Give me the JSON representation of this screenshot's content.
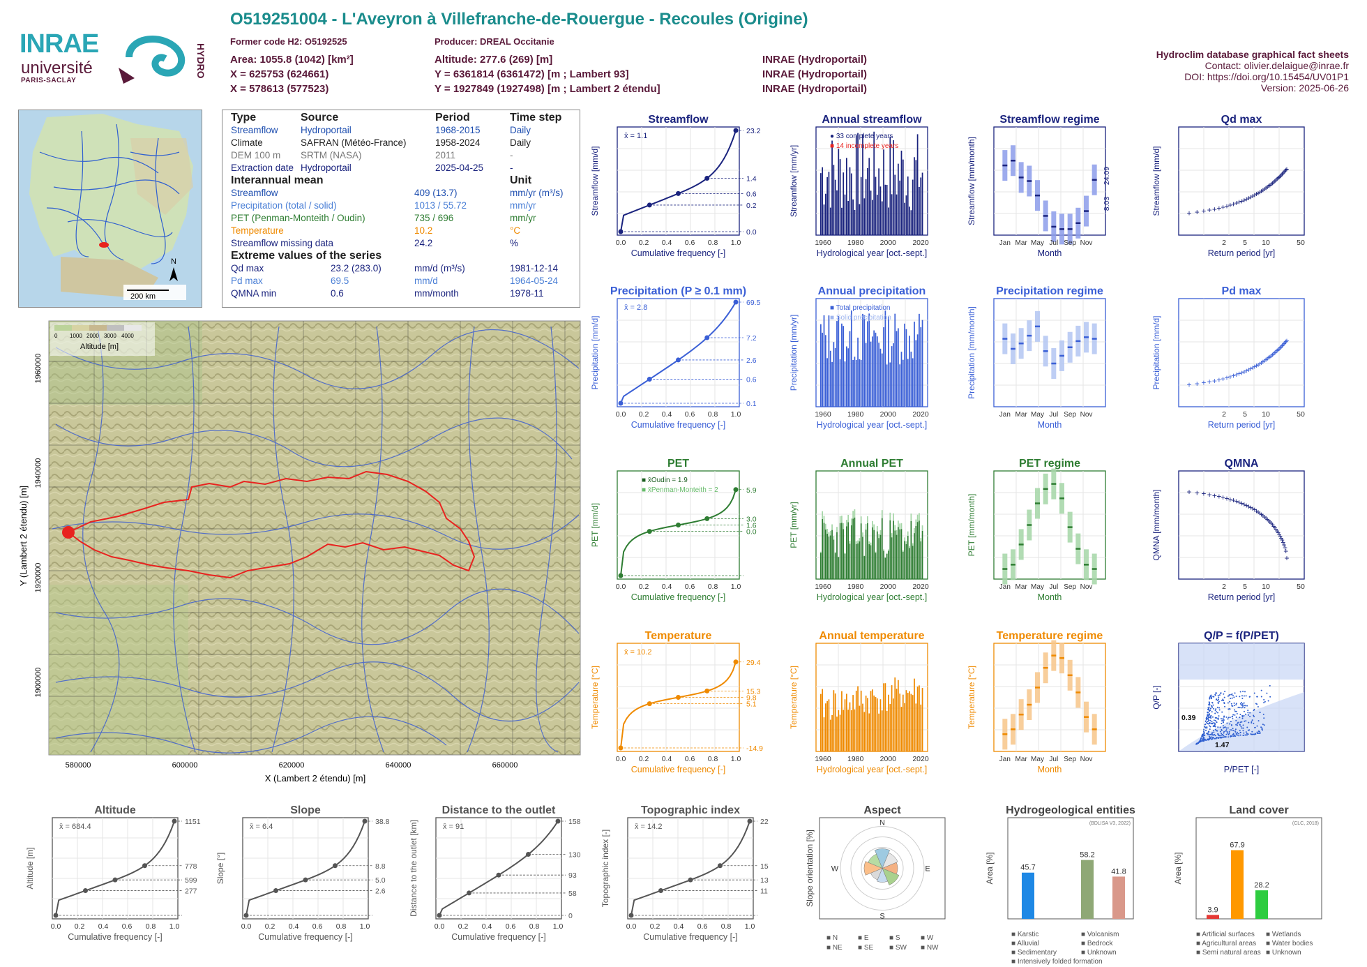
{
  "header": {
    "title": "O519251004 - L'Aveyron à Villefranche-de-Rouergue - Recoules (Origine)",
    "former_code": "Former code H2: O5192525",
    "producer": "Producer: DREAL Occitanie",
    "area": "Area: 1055.8 (1042) [km²]",
    "altitude": "Altitude: 277.6 (269) [m]",
    "x_lambert93": "X = 625753 (624661)",
    "y_lambert93": "Y = 6361814 (6361472) [m ; Lambert 93]",
    "x_lambert2": "X = 578613 (577523)",
    "y_lambert2": "Y = 1927849 (1927498) [m ; Lambert 2 étendu]",
    "src1": "INRAE (Hydroportail)",
    "src2": "INRAE (Hydroportail)",
    "src3": "INRAE (Hydroportail)"
  },
  "right_info": {
    "title": "Hydroclim database graphical fact sheets",
    "contact": "Contact: olivier.delaigue@inrae.fr",
    "doi": "DOI: https://doi.org/10.15454/UV01P1",
    "version": "Version: 2025-06-26"
  },
  "logos": {
    "inrae": "INRAE",
    "univ": "université",
    "paris": "PARIS-SACLAY",
    "hydro": "HYDRO"
  },
  "table": {
    "h_type": "Type",
    "h_source": "Source",
    "h_period": "Period",
    "h_step": "Time step",
    "rows": [
      {
        "type": "Streamflow",
        "source": "Hydroportail",
        "period": "1968-2015",
        "step": "Daily"
      },
      {
        "type": "Climate",
        "source": "SAFRAN (Météo-France)",
        "period": "1958-2024",
        "step": "Daily"
      },
      {
        "type": "DEM 100 m",
        "source": "SRTM (NASA)",
        "period": "2011",
        "step": "-"
      },
      {
        "type": "Extraction date",
        "source": "Hydroportail",
        "period": "2025-04-25",
        "step": "-"
      }
    ],
    "interannual": "Interannual mean",
    "unit": "Unit",
    "means": [
      {
        "name": "Streamflow",
        "value": "409 (13.7)",
        "unit": "mm/yr (m³/s)"
      },
      {
        "name": "Precipitation (total / solid)",
        "value": "1013 / 55.72",
        "unit": "mm/yr"
      },
      {
        "name": "PET (Penman-Monteith / Oudin)",
        "value": "735 / 696",
        "unit": "mm/yr"
      },
      {
        "name": "Temperature",
        "value": "10.2",
        "unit": "°C"
      },
      {
        "name": "Streamflow missing data",
        "value": "24.2",
        "unit": "%"
      }
    ],
    "extreme": "Extreme values of the series",
    "extremes": [
      {
        "name": "Qd max",
        "value": "23.2 (283.0)",
        "unit": "mm/d (m³/s)",
        "date": "1981-12-14"
      },
      {
        "name": "Pd max",
        "value": "69.5",
        "unit": "mm/d",
        "date": "1964-05-24"
      },
      {
        "name": "QMNA min",
        "value": "0.6",
        "unit": "mm/month",
        "date": "1978-11"
      }
    ]
  },
  "map": {
    "legend_ticks": [
      "0",
      "1000",
      "2000",
      "3000",
      "4000"
    ],
    "legend_label": "Altitude [m]",
    "x_ticks": [
      "580000",
      "600000",
      "620000",
      "640000",
      "660000"
    ],
    "y_ticks": [
      "1960000",
      "1940000",
      "1920000",
      "1900000"
    ],
    "xlabel": "X (Lambert 2 étendu) [m]",
    "ylabel": "Y (Lambert 2 étendu) [m]",
    "scale": "200 km",
    "north": "N"
  },
  "colors": {
    "flow": "#1a237e",
    "precip": "#3a5fd6",
    "pet": "#2e7d32",
    "temp": "#ef8a00",
    "basin": "#e8231f"
  },
  "chart_data": [
    {
      "id": "streamflow",
      "type": "line",
      "title": "Streamflow",
      "xlabel": "Cumulative frequency [-]",
      "ylabel": "Streamflow [mm/d]",
      "mean_label": "x̄ = 1.1",
      "right_ticks": [
        "23.2",
        "1.4",
        "0.6",
        "0.2",
        "0.0"
      ]
    },
    {
      "id": "annual_streamflow",
      "type": "bar",
      "title": "Annual streamflow",
      "xlabel": "Hydrological year [oct.-sept.]",
      "ylabel": "Streamflow [mm/yr]",
      "legend": [
        "33 complete years",
        "14 incomplete years"
      ]
    },
    {
      "id": "streamflow_regime",
      "type": "bar",
      "title": "Streamflow regime",
      "xlabel": "Month",
      "ylabel": "Streamflow [mm/month]",
      "right_ticks": [
        "24.09",
        "8.03"
      ],
      "categories": [
        "Jan",
        "Feb",
        "Mar",
        "Apr",
        "May",
        "Jun",
        "Jul",
        "Aug",
        "Sep",
        "Oct",
        "Nov",
        "Dec"
      ],
      "median": [
        58,
        62,
        48,
        45,
        33,
        16,
        7,
        5,
        5,
        10,
        20,
        46
      ]
    },
    {
      "id": "qd_max",
      "type": "scatter",
      "title": "Qd max",
      "xlabel": "Return period [yr]",
      "ylabel": "Streamflow [mm/d]"
    },
    {
      "id": "precipitation",
      "type": "line",
      "title": "Precipitation (P ≥ 0.1 mm)",
      "xlabel": "Cumulative frequency [-]",
      "ylabel": "Precipitation [mm/d]",
      "mean_label": "x̄ = 2.8",
      "right_ticks": [
        "69.5",
        "7.2",
        "2.6",
        "0.6",
        "0.1"
      ]
    },
    {
      "id": "annual_precipitation",
      "type": "bar",
      "title": "Annual precipitation",
      "xlabel": "Hydrological year [oct.-sept.]",
      "ylabel": "Precipitation [mm/yr]",
      "legend": [
        "Total precipitation",
        "Solid precipitation"
      ]
    },
    {
      "id": "precip_regime",
      "type": "bar",
      "title": "Precipitation regime",
      "xlabel": "Month",
      "ylabel": "Precipitation [mm/month]",
      "median": [
        88,
        75,
        82,
        92,
        104,
        72,
        56,
        66,
        77,
        85,
        90,
        88
      ]
    },
    {
      "id": "pd_max",
      "type": "scatter",
      "title": "Pd max",
      "xlabel": "Return period [yr]",
      "ylabel": "Precipitation [mm/d]"
    },
    {
      "id": "pet",
      "type": "line",
      "title": "PET",
      "xlabel": "Cumulative frequency [-]",
      "ylabel": "PET [mm/d]",
      "legend": [
        "x̄Oudin = 1.9",
        "x̄Penman-Monteith = 2"
      ],
      "right_ticks": [
        "5.9",
        "3.0",
        "1.6",
        "0.0"
      ]
    },
    {
      "id": "annual_pet",
      "type": "bar",
      "title": "Annual PET",
      "xlabel": "Hydrological year [oct.-sept.]",
      "ylabel": "PET [mm/yr]"
    },
    {
      "id": "pet_regime",
      "type": "bar",
      "title": "PET regime",
      "xlabel": "Month",
      "ylabel": "PET [mm/month]",
      "median": [
        14,
        20,
        48,
        75,
        105,
        125,
        132,
        112,
        72,
        42,
        20,
        14
      ]
    },
    {
      "id": "qmna",
      "type": "scatter",
      "title": "QMNA",
      "xlabel": "Return period [yr]",
      "ylabel": "QMNA [mm/month]"
    },
    {
      "id": "temperature",
      "type": "line",
      "title": "Temperature",
      "xlabel": "Cumulative frequency [-]",
      "ylabel": "Temperature [°C]",
      "mean_label": "x̄ = 10.2",
      "right_ticks": [
        "29.4",
        "15.3",
        "9.8",
        "5.1",
        "-14.9"
      ]
    },
    {
      "id": "annual_temperature",
      "type": "bar",
      "title": "Annual temperature",
      "xlabel": "Hydrological year [oct.-sept.]",
      "ylabel": "Temperature [°C]"
    },
    {
      "id": "temp_regime",
      "type": "bar",
      "title": "Temperature regime",
      "xlabel": "Month",
      "ylabel": "Temperature [°C]",
      "median": [
        3.5,
        4.5,
        7.5,
        9.5,
        13,
        17,
        19.5,
        19,
        15.5,
        12,
        7,
        4.5
      ]
    },
    {
      "id": "qp_ppet",
      "type": "scatter",
      "title": "Q/P = f(P/PET)",
      "xlabel": "P/PET [-]",
      "ylabel": "Q/P [-]",
      "labels": [
        "0.39",
        "1.47"
      ]
    },
    {
      "id": "altitude",
      "type": "line",
      "title": "Altitude",
      "xlabel": "Cumulative frequency [-]",
      "ylabel": "Altitude [m]",
      "mean_label": "x̄ = 684.4",
      "right_ticks": [
        "1151",
        "778",
        "599",
        "277"
      ]
    },
    {
      "id": "slope",
      "type": "line",
      "title": "Slope",
      "xlabel": "Cumulative frequency [-]",
      "ylabel": "Slope [°]",
      "mean_label": "x̄ = 6.4",
      "right_ticks": [
        "38.8",
        "8.8",
        "5.0",
        "2.6"
      ]
    },
    {
      "id": "distance",
      "type": "line",
      "title": "Distance to the outlet",
      "xlabel": "Cumulative frequency [-]",
      "ylabel": "Distance to the outlet [km]",
      "mean_label": "x̄ = 91",
      "right_ticks": [
        "158",
        "130",
        "93",
        "58",
        "0"
      ]
    },
    {
      "id": "topo",
      "type": "line",
      "title": "Topographic index",
      "xlabel": "Cumulative frequency [-]",
      "ylabel": "Topographic index [-]",
      "mean_label": "x̄ = 14.2",
      "right_ticks": [
        "22",
        "15",
        "13",
        "11"
      ]
    },
    {
      "id": "aspect",
      "type": "pie",
      "title": "Aspect",
      "ylabel": "Slope orientation [%]",
      "legend": [
        "N",
        "E",
        "S",
        "W",
        "NE",
        "SE",
        "SW",
        "NW"
      ]
    },
    {
      "id": "hydrogeo",
      "type": "bar",
      "title": "Hydrogeological entities",
      "ylabel": "Area [%]",
      "note": "(BDLISA V3, 2022)",
      "values": [
        45.7,
        58.2,
        41.8
      ],
      "legend": [
        "Karstic",
        "Volcanism",
        "Alluvial",
        "Bedrock",
        "Sedimentary",
        "Unknown",
        "Intensively folded formation"
      ]
    },
    {
      "id": "landcover",
      "type": "bar",
      "title": "Land cover",
      "ylabel": "Area [%]",
      "note": "(CLC, 2018)",
      "values": [
        3.9,
        67.9,
        28.2
      ],
      "legend": [
        "Artificial surfaces",
        "Wetlands",
        "Agricultural areas",
        "Water bodies",
        "Semi natural areas",
        "Unknown"
      ]
    }
  ]
}
